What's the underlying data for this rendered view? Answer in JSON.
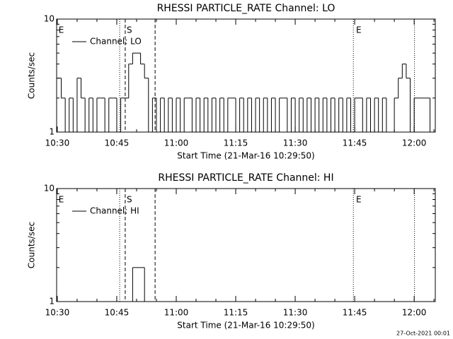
{
  "chart_data": [
    {
      "type": "step",
      "title": "RHESSI PARTICLE_RATE Channel: LO",
      "xlabel": "Start Time (21-Mar-16 10:29:50)",
      "ylabel": "Counts/sec",
      "x": [
        "10:30",
        "10:31",
        "10:32",
        "10:33",
        "10:34",
        "10:35",
        "10:36",
        "10:37",
        "10:38",
        "10:39",
        "10:40",
        "10:41",
        "10:42",
        "10:43",
        "10:44",
        "10:45",
        "10:46",
        "10:47",
        "10:48",
        "10:49",
        "10:50",
        "10:51",
        "10:52",
        "10:53",
        "10:54",
        "10:55",
        "10:56",
        "10:57",
        "10:58",
        "10:59",
        "11:00",
        "11:01",
        "11:02",
        "11:03",
        "11:04",
        "11:05",
        "11:06",
        "11:07",
        "11:08",
        "11:09",
        "11:10",
        "11:11",
        "11:12",
        "11:13",
        "11:14",
        "11:15",
        "11:16",
        "11:17",
        "11:18",
        "11:19",
        "11:20",
        "11:21",
        "11:22",
        "11:23",
        "11:24",
        "11:25",
        "11:26",
        "11:27",
        "11:28",
        "11:29",
        "11:30",
        "11:31",
        "11:32",
        "11:33",
        "11:34",
        "11:35",
        "11:36",
        "11:37",
        "11:38",
        "11:39",
        "11:40",
        "11:41",
        "11:42",
        "11:43",
        "11:44",
        "11:45",
        "11:46",
        "11:47",
        "11:48",
        "11:49",
        "11:50",
        "11:51",
        "11:52",
        "11:53",
        "11:54",
        "11:55",
        "11:56",
        "11:57",
        "11:58",
        "11:59",
        "12:00",
        "12:01",
        "12:02",
        "12:03",
        "12:04"
      ],
      "series": [
        {
          "name": "Channel: LO",
          "color": "#000000",
          "values": [
            3,
            2,
            1,
            2,
            1,
            3,
            2,
            1,
            2,
            1,
            2,
            2,
            1,
            2,
            2,
            1,
            2,
            2,
            4,
            5,
            5,
            4,
            3,
            1,
            2,
            1,
            2,
            1,
            2,
            1,
            2,
            1,
            2,
            2,
            1,
            2,
            1,
            2,
            1,
            2,
            1,
            2,
            1,
            2,
            2,
            1,
            2,
            1,
            2,
            1,
            2,
            1,
            2,
            1,
            2,
            1,
            2,
            2,
            1,
            2,
            1,
            2,
            1,
            2,
            1,
            2,
            1,
            2,
            1,
            2,
            1,
            2,
            1,
            2,
            1,
            2,
            2,
            1,
            2,
            1,
            2,
            1,
            2,
            1,
            1,
            2,
            3,
            4,
            3,
            1,
            2,
            2,
            2,
            2,
            1
          ]
        }
      ],
      "xlim": [
        "10:29:50",
        "12:05:20"
      ],
      "xticks": [
        "10:30",
        "10:45",
        "11:00",
        "11:15",
        "11:30",
        "11:45",
        "12:00"
      ],
      "minor_xticks": [
        "10:35",
        "10:40",
        "10:50",
        "10:55",
        "11:05",
        "11:10",
        "11:20",
        "11:25",
        "11:35",
        "11:40",
        "11:50",
        "11:55",
        "12:05"
      ],
      "ylim": [
        1,
        10
      ],
      "yticks": [
        1,
        10
      ],
      "minor_yticks": [
        2,
        3,
        4,
        5,
        6,
        7,
        8,
        9
      ],
      "log_y": true,
      "legend": "upper left",
      "vlines": [
        {
          "x": "10:45:44",
          "style": "dotted"
        },
        {
          "x": "10:47:08",
          "style": "dashed"
        },
        {
          "x": "10:54:40",
          "style": "dashed"
        },
        {
          "x": "11:44:40",
          "style": "dotted"
        },
        {
          "x": "12:00:05",
          "style": "dotted"
        }
      ],
      "annotations": [
        {
          "text": "E",
          "x": "10:30:20"
        },
        {
          "text": "S",
          "x": "10:47:30"
        },
        {
          "text": "E",
          "x": "11:45:20"
        }
      ]
    },
    {
      "type": "step",
      "title": "RHESSI PARTICLE_RATE Channel: HI",
      "xlabel": "Start Time (21-Mar-16 10:29:50)",
      "ylabel": "Counts/sec",
      "x": [
        "10:30",
        "10:31",
        "10:32",
        "10:33",
        "10:34",
        "10:35",
        "10:36",
        "10:37",
        "10:38",
        "10:39",
        "10:40",
        "10:41",
        "10:42",
        "10:43",
        "10:44",
        "10:45",
        "10:46",
        "10:47",
        "10:48",
        "10:49",
        "10:50",
        "10:51",
        "10:52",
        "10:53",
        "10:54",
        "10:55",
        "10:56",
        "10:57",
        "10:58",
        "10:59",
        "11:00",
        "11:01",
        "11:02",
        "11:03",
        "11:04",
        "11:05",
        "11:06",
        "11:07",
        "11:08",
        "11:09",
        "11:10",
        "11:11",
        "11:12",
        "11:13",
        "11:14",
        "11:15",
        "11:16",
        "11:17",
        "11:18",
        "11:19",
        "11:20",
        "11:21",
        "11:22",
        "11:23",
        "11:24",
        "11:25",
        "11:26",
        "11:27",
        "11:28",
        "11:29",
        "11:30",
        "11:31",
        "11:32",
        "11:33",
        "11:34",
        "11:35",
        "11:36",
        "11:37",
        "11:38",
        "11:39",
        "11:40",
        "11:41",
        "11:42",
        "11:43",
        "11:44",
        "11:45",
        "11:46",
        "11:47",
        "11:48",
        "11:49",
        "11:50",
        "11:51",
        "11:52",
        "11:53",
        "11:54",
        "11:55",
        "11:56",
        "11:57",
        "11:58",
        "11:59",
        "12:00",
        "12:01",
        "12:02",
        "12:03",
        "12:04"
      ],
      "series": [
        {
          "name": "Channel: HI",
          "color": "#000000",
          "values": [
            1,
            1,
            1,
            1,
            1,
            1,
            1,
            1,
            1,
            1,
            1,
            1,
            1,
            1,
            1,
            1,
            1,
            1,
            1,
            2,
            2,
            2,
            1,
            1,
            1,
            1,
            1,
            1,
            1,
            1,
            1,
            1,
            1,
            1,
            1,
            1,
            1,
            1,
            1,
            1,
            1,
            1,
            1,
            1,
            1,
            1,
            1,
            1,
            1,
            1,
            1,
            1,
            1,
            1,
            1,
            1,
            1,
            1,
            1,
            1,
            1,
            1,
            1,
            1,
            1,
            1,
            1,
            1,
            1,
            1,
            1,
            1,
            1,
            1,
            1,
            1,
            1,
            1,
            1,
            1,
            1,
            1,
            1,
            1,
            1,
            1,
            1,
            1,
            1,
            1,
            1,
            1,
            1,
            1,
            1
          ]
        }
      ],
      "xlim": [
        "10:29:50",
        "12:05:20"
      ],
      "xticks": [
        "10:30",
        "10:45",
        "11:00",
        "11:15",
        "11:30",
        "11:45",
        "12:00"
      ],
      "minor_xticks": [
        "10:35",
        "10:40",
        "10:50",
        "10:55",
        "11:05",
        "11:10",
        "11:20",
        "11:25",
        "11:35",
        "11:40",
        "11:50",
        "11:55",
        "12:05"
      ],
      "ylim": [
        1,
        10
      ],
      "yticks": [
        1,
        10
      ],
      "minor_yticks": [
        2,
        3,
        4,
        5,
        6,
        7,
        8,
        9
      ],
      "log_y": true,
      "legend": "upper left",
      "vlines": [
        {
          "x": "10:45:44",
          "style": "dotted"
        },
        {
          "x": "10:47:08",
          "style": "dashed"
        },
        {
          "x": "10:54:40",
          "style": "dashed"
        },
        {
          "x": "11:44:40",
          "style": "dotted"
        },
        {
          "x": "12:00:05",
          "style": "dotted"
        }
      ],
      "annotations": [
        {
          "text": "E",
          "x": "10:30:20"
        },
        {
          "text": "S",
          "x": "10:47:30"
        },
        {
          "text": "E",
          "x": "11:45:20"
        }
      ]
    }
  ],
  "footer": "27-Oct-2021 00:01"
}
